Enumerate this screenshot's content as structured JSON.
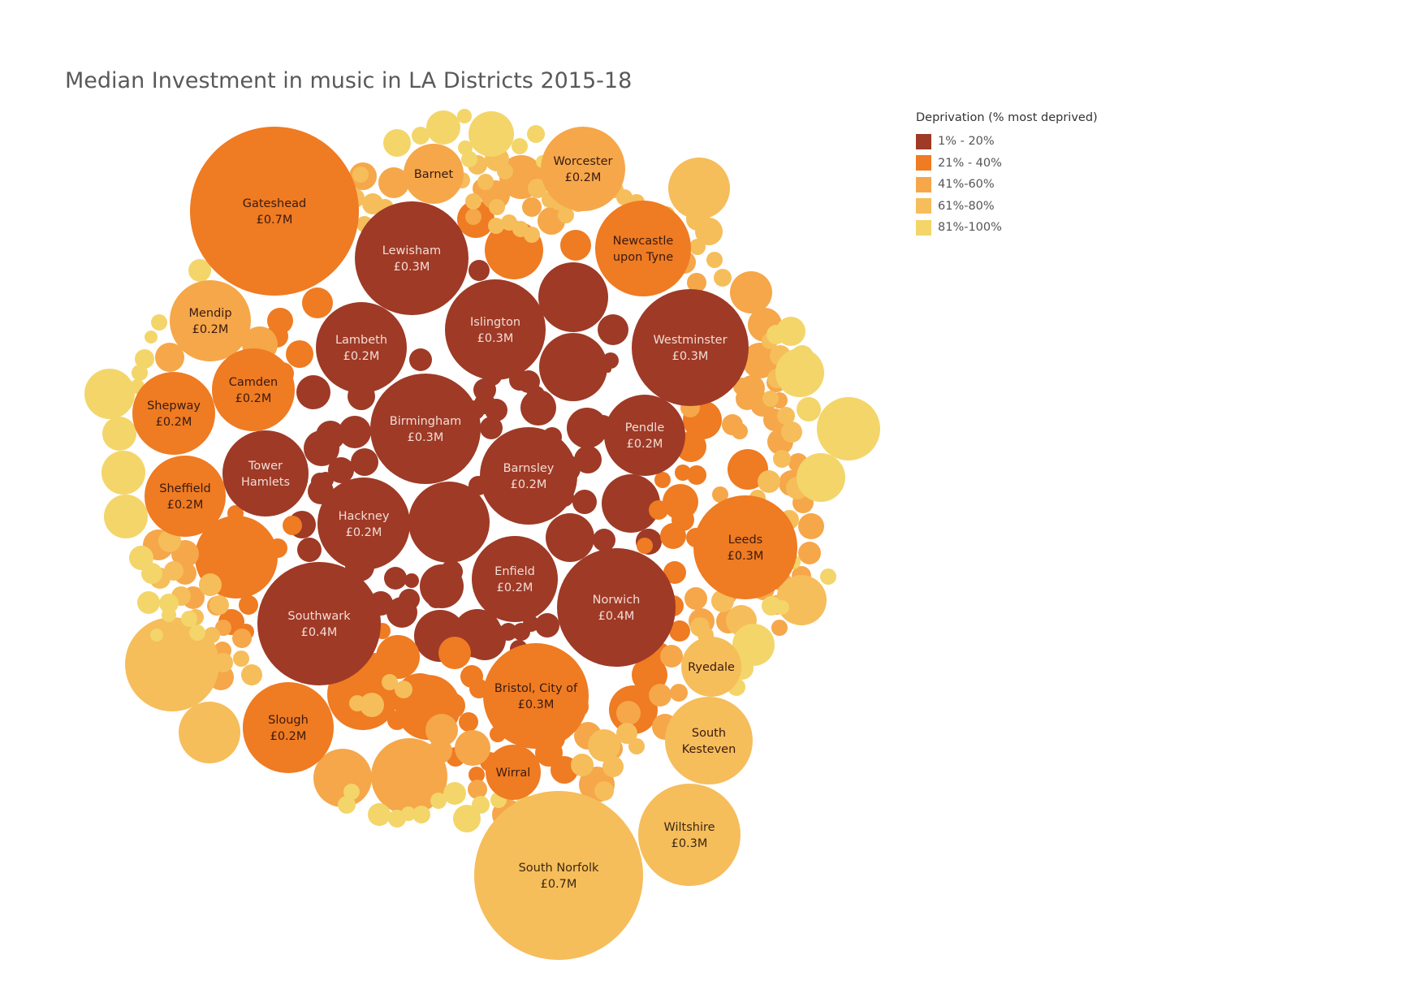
{
  "chart_data": {
    "type": "packed-bubble",
    "title": "Median Investment in music in LA Districts 2015-18",
    "legend": {
      "title": "Deprivation (% most deprived)",
      "placement": "top-right",
      "categories": [
        {
          "label": "1% - 20%",
          "color": "#9e3a26"
        },
        {
          "label": "21% - 40%",
          "color": "#ef7b22"
        },
        {
          "label": "41%-60%",
          "color": "#f5a74a"
        },
        {
          "label": "61%-80%",
          "color": "#f6bd5b"
        },
        {
          "label": "81%-100%",
          "color": "#f3d56a"
        }
      ]
    },
    "labeled_bubbles": [
      {
        "name": "Gateshead",
        "value_label": "£0.7M",
        "value": 0.7,
        "band": "21% - 40%"
      },
      {
        "name": "South Norfolk",
        "value_label": "£0.7M",
        "value": 0.7,
        "band": "61%-80%"
      },
      {
        "name": "Southwark",
        "value_label": "£0.4M",
        "value": 0.4,
        "band": "1% - 20%"
      },
      {
        "name": "Norwich",
        "value_label": "£0.4M",
        "value": 0.4,
        "band": "1% - 20%"
      },
      {
        "name": "Lewisham",
        "value_label": "£0.3M",
        "value": 0.3,
        "band": "1% - 20%"
      },
      {
        "name": "Islington",
        "value_label": "£0.3M",
        "value": 0.3,
        "band": "1% - 20%"
      },
      {
        "name": "Westminster",
        "value_label": "£0.3M",
        "value": 0.3,
        "band": "1% - 20%"
      },
      {
        "name": "Birmingham",
        "value_label": "£0.3M",
        "value": 0.3,
        "band": "1% - 20%"
      },
      {
        "name": "Leeds",
        "value_label": "£0.3M",
        "value": 0.3,
        "band": "21% - 40%"
      },
      {
        "name": "Bristol, City of",
        "value_label": "£0.3M",
        "value": 0.3,
        "band": "21% - 40%"
      },
      {
        "name": "Wiltshire",
        "value_label": "£0.3M",
        "value": 0.3,
        "band": "61%-80%"
      },
      {
        "name": "Lambeth",
        "value_label": "£0.2M",
        "value": 0.2,
        "band": "1% - 20%"
      },
      {
        "name": "Pendle",
        "value_label": "£0.2M",
        "value": 0.2,
        "band": "1% - 20%"
      },
      {
        "name": "Barnsley",
        "value_label": "£0.2M",
        "value": 0.2,
        "band": "1% - 20%"
      },
      {
        "name": "Hackney",
        "value_label": "£0.2M",
        "value": 0.2,
        "band": "1% - 20%"
      },
      {
        "name": "Enfield",
        "value_label": "£0.2M",
        "value": 0.2,
        "band": "1% - 20%"
      },
      {
        "name": "Tower Hamlets",
        "value_label": "",
        "value": 0.2,
        "band": "1% - 20%"
      },
      {
        "name": "Worcester",
        "value_label": "£0.2M",
        "value": 0.2,
        "band": "41%-60%"
      },
      {
        "name": "Newcastle upon Tyne",
        "value_label": "",
        "value": 0.2,
        "band": "21% - 40%"
      },
      {
        "name": "Mendip",
        "value_label": "£0.2M",
        "value": 0.2,
        "band": "41%-60%"
      },
      {
        "name": "Camden",
        "value_label": "£0.2M",
        "value": 0.2,
        "band": "21% - 40%"
      },
      {
        "name": "Shepway",
        "value_label": "£0.2M",
        "value": 0.2,
        "band": "21% - 40%"
      },
      {
        "name": "Sheffield",
        "value_label": "£0.2M",
        "value": 0.2,
        "band": "21% - 40%"
      },
      {
        "name": "Slough",
        "value_label": "£0.2M",
        "value": 0.2,
        "band": "21% - 40%"
      },
      {
        "name": "Barnet",
        "value_label": "",
        "value": 0.15,
        "band": "41%-60%"
      },
      {
        "name": "Ryedale",
        "value_label": "",
        "value": 0.1,
        "band": "61%-80%"
      },
      {
        "name": "South Kesteven",
        "value_label": "",
        "value": 0.2,
        "band": "61%-80%"
      },
      {
        "name": "Wirral",
        "value_label": "",
        "value": 0.1,
        "band": "21% - 40%"
      }
    ]
  }
}
